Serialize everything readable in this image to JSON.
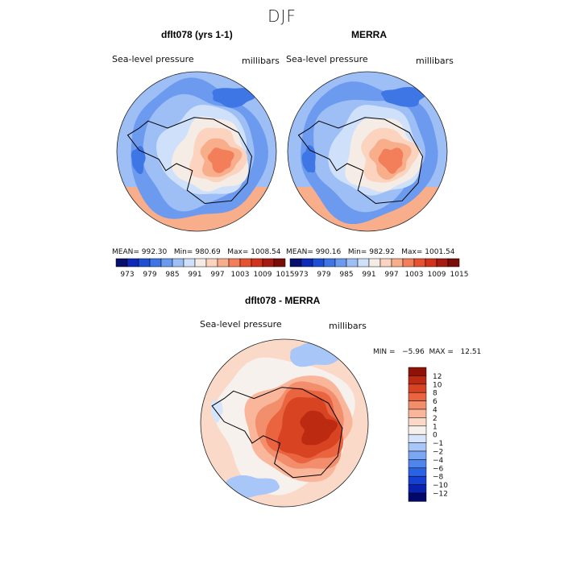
{
  "figure": {
    "season": "DJF",
    "colors": {
      "pressure_scale": [
        "#08106e",
        "#0d2ab8",
        "#1e50d6",
        "#3f76e6",
        "#6b9aef",
        "#9dbff6",
        "#cfe0fb",
        "#f6ece6",
        "#fbd3bf",
        "#f8ad8b",
        "#f27f5a",
        "#e8532f",
        "#d2331c",
        "#a71c12",
        "#7a0d08"
      ],
      "diff_scale": [
        "#02086b",
        "#0a22b0",
        "#1440d4",
        "#2a62e6",
        "#4e86ee",
        "#7aa6f3",
        "#a9c6f8",
        "#d6e5fc",
        "#f7f1ee",
        "#fbd9c8",
        "#f9b69a",
        "#f38e6c",
        "#ea6440",
        "#d84322",
        "#bd2a12",
        "#8f1208"
      ],
      "land_outline": "#000000"
    }
  },
  "chart_data": [
    {
      "type": "heatmap",
      "title": "dflt078 (yrs 1-1)",
      "variable_label": "Sea-level pressure",
      "units_label": "millibars",
      "stats": {
        "mean": 992.3,
        "min": 980.69,
        "max": 1008.54
      },
      "stats_text": "MEAN= 992.30   Min= 980.69   Max= 1008.54",
      "colorbar_ticks": [
        "973",
        "979",
        "985",
        "991",
        "997",
        "1003",
        "1009",
        "1015"
      ],
      "colorbar_levels": [
        970,
        973,
        976,
        979,
        982,
        985,
        988,
        991,
        994,
        997,
        1000,
        1003,
        1006,
        1009,
        1012,
        1015
      ],
      "projection": "south polar stereographic"
    },
    {
      "type": "heatmap",
      "title": "MERRA",
      "variable_label": "Sea-level pressure",
      "units_label": "millibars",
      "stats": {
        "mean": 990.16,
        "min": 982.92,
        "max": 1001.54
      },
      "stats_text": "MEAN= 990.16   Min= 982.92   Max= 1001.54",
      "colorbar_ticks": [
        "973",
        "979",
        "985",
        "991",
        "997",
        "1003",
        "1009",
        "1015"
      ],
      "colorbar_levels": [
        970,
        973,
        976,
        979,
        982,
        985,
        988,
        991,
        994,
        997,
        1000,
        1003,
        1006,
        1009,
        1012,
        1015
      ],
      "projection": "south polar stereographic"
    },
    {
      "type": "heatmap",
      "title": "dflt078 - MERRA",
      "variable_label": "Sea-level pressure",
      "units_label": "millibars",
      "stats": {
        "min": -5.96,
        "max": 12.51
      },
      "stats_text": "MIN =   −5.96  MAX =   12.51",
      "colorbar_ticks": [
        "12",
        "10",
        "8",
        "6",
        "4",
        "2",
        "1",
        "0",
        "−1",
        "−2",
        "−4",
        "−6",
        "−8",
        "−10",
        "−12"
      ],
      "colorbar_levels": [
        -12,
        -10,
        -8,
        -6,
        -4,
        -2,
        -1,
        0,
        1,
        2,
        4,
        6,
        8,
        10,
        12
      ],
      "projection": "south polar stereographic"
    }
  ]
}
